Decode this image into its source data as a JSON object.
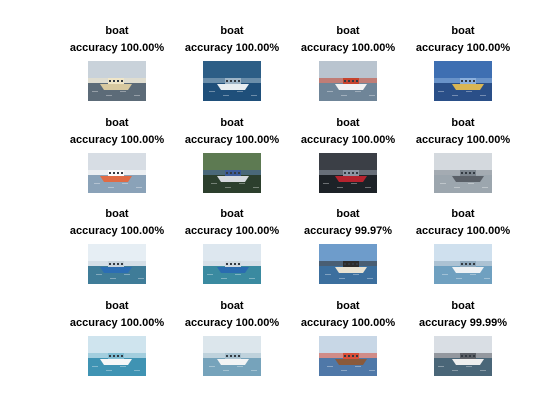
{
  "figure": {
    "tiles": [
      {
        "label": "boat",
        "accuracy": "accuracy 100.00%",
        "scene": "ferry-grey-water",
        "sky": "#c9d2da",
        "water": "#5c6b78",
        "hull": "#d8c9a0",
        "accent": "#f0e6c8"
      },
      {
        "label": "boat",
        "accuracy": "accuracy 100.00%",
        "scene": "boat-blue-sea",
        "sky": "#2d5e86",
        "water": "#1f4f7a",
        "hull": "#e8eef2",
        "accent": "#9fb6c8"
      },
      {
        "label": "boat",
        "accuracy": "accuracy 100.00%",
        "scene": "ferry-red-white",
        "sky": "#b9c4cf",
        "water": "#6f8598",
        "hull": "#f2f2f2",
        "accent": "#c6442e"
      },
      {
        "label": "boat",
        "accuracy": "accuracy 100.00%",
        "scene": "pier-night-blue",
        "sky": "#3e6fb2",
        "water": "#2a4f88",
        "hull": "#d9b654",
        "accent": "#8cb0dc"
      },
      {
        "label": "boat",
        "accuracy": "accuracy 100.00%",
        "scene": "ferry-harbour-city",
        "sky": "#d7dde4",
        "water": "#8aa2b8",
        "hull": "#e06b44",
        "accent": "#fbfbfb"
      },
      {
        "label": "boat",
        "accuracy": "accuracy 100.00%",
        "scene": "crowded-deck",
        "sky": "#5d7a52",
        "water": "#2c3f2d",
        "hull": "#d6d9de",
        "accent": "#3b5998"
      },
      {
        "label": "boat",
        "accuracy": "accuracy 100.00%",
        "scene": "boat-dark-sky",
        "sky": "#3b3f46",
        "water": "#1d2227",
        "hull": "#b5232e",
        "accent": "#8c96a3"
      },
      {
        "label": "boat",
        "accuracy": "accuracy 100.00%",
        "scene": "skyline-haze",
        "sky": "#d4d9de",
        "water": "#9ca6ae",
        "hull": "#5a6068",
        "accent": "#7c858e"
      },
      {
        "label": "boat",
        "accuracy": "accuracy 100.00%",
        "scene": "pier-blue-roof",
        "sky": "#e6eef4",
        "water": "#3f7c98",
        "hull": "#2c6eb4",
        "accent": "#c7d3dc"
      },
      {
        "label": "boat",
        "accuracy": "accuracy 100.00%",
        "scene": "pier-blue-roof-2",
        "sky": "#dde7ef",
        "water": "#3a8aa0",
        "hull": "#2a6cb0",
        "accent": "#d0d9e0"
      },
      {
        "label": "boat",
        "accuracy": "accuracy 99.97%",
        "scene": "ship-bow-blue",
        "sky": "#6e9ccb",
        "water": "#3c6f9e",
        "hull": "#e9e3d3",
        "accent": "#2b2b2b"
      },
      {
        "label": "boat",
        "accuracy": "accuracy 100.00%",
        "scene": "city-waterfront",
        "sky": "#cfe0ee",
        "water": "#6fa0c0",
        "hull": "#eef2f5",
        "accent": "#8fa9bd"
      },
      {
        "label": "boat",
        "accuracy": "accuracy 100.00%",
        "scene": "speedboat-waves",
        "sky": "#cfe4ee",
        "water": "#3f93b3",
        "hull": "#f5f7f8",
        "accent": "#7fbcd2"
      },
      {
        "label": "boat",
        "accuracy": "accuracy 100.00%",
        "scene": "boat-light-sea",
        "sky": "#dce6ec",
        "water": "#76a3bb",
        "hull": "#f2f4f5",
        "accent": "#a8c1cf"
      },
      {
        "label": "boat",
        "accuracy": "accuracy 100.00%",
        "scene": "cartoon-boat",
        "sky": "#c8d7e6",
        "water": "#4f78a8",
        "hull": "#8a5a3c",
        "accent": "#d94f3a"
      },
      {
        "label": "boat",
        "accuracy": "accuracy 99.99%",
        "scene": "mountain-lake",
        "sky": "#d9dee4",
        "water": "#4a6678",
        "hull": "#eeeeee",
        "accent": "#5b5f66"
      }
    ]
  }
}
